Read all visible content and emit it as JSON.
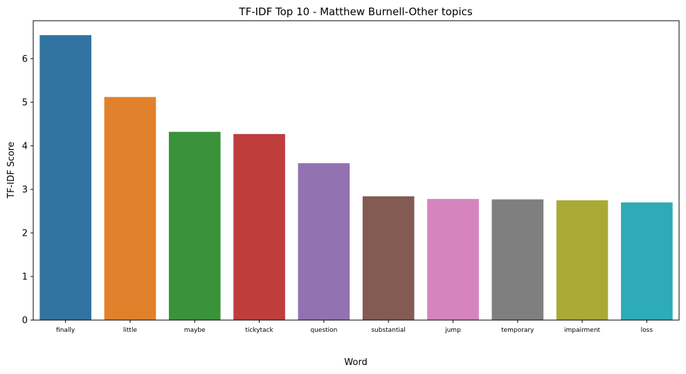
{
  "chart_data": {
    "type": "bar",
    "title": "TF-IDF Top 10 - Matthew Burnell-Other topics",
    "xlabel": "Word",
    "ylabel": "TF-IDF Score",
    "categories": [
      "finally",
      "little",
      "maybe",
      "tickytack",
      "question",
      "substantial",
      "jump",
      "temporary",
      "impairment",
      "loss"
    ],
    "values": [
      6.54,
      5.12,
      4.32,
      4.27,
      3.6,
      2.84,
      2.78,
      2.77,
      2.75,
      2.7
    ],
    "colors": [
      "#3274a1",
      "#e1812c",
      "#3a923a",
      "#c03d3e",
      "#9372b2",
      "#845b53",
      "#d684bd",
      "#7f7f7f",
      "#a9aa35",
      "#2eabb8"
    ],
    "ylim": [
      0,
      6.87
    ],
    "yticks": [
      0,
      1,
      2,
      3,
      4,
      5,
      6
    ],
    "grid": false,
    "legend": "none"
  }
}
